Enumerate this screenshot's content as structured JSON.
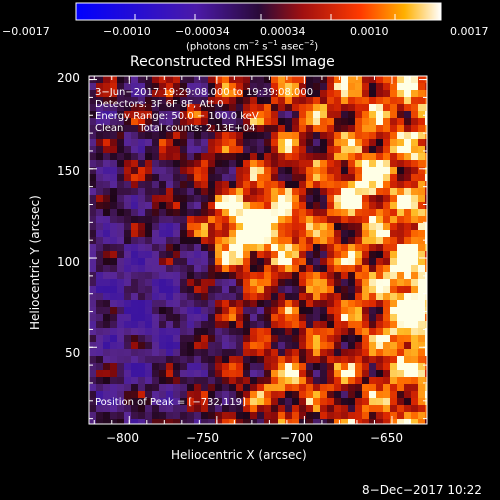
{
  "colorbar": {
    "ticks": [
      "−0.0017",
      "−0.0010",
      "−0.00034",
      "0.00034",
      "0.0010",
      "0.0017"
    ],
    "units_main": "(photons cm",
    "units_exp1": "−2",
    "units_mid": " s",
    "units_exp2": "−1",
    "units_mid2": " asec",
    "units_exp3": "−2",
    "units_end": ")"
  },
  "plot": {
    "title": "Reconstructed RHESSI Image",
    "xlabel": "Heliocentric X (arcsec)",
    "ylabel": "Heliocentric Y (arcsec)",
    "xticks": [
      "−800",
      "−750",
      "−700",
      "−650"
    ],
    "yticks": [
      "200",
      "150",
      "100",
      "50"
    ],
    "annotations": [
      "3−Jun−2017 19:29:08.000 to 19:39:08.000",
      "Detectors: 3F 6F 8F, Att 0",
      "Energy Range: 50.0 − 100.0 keV",
      "Clean     Total counts: 2.13E+04"
    ],
    "peak": "Position of Peak = [−732,119]"
  },
  "footer": {
    "timestamp": "8−Dec−2017 10:22"
  },
  "image_data": {
    "x_range": [
      -823,
      -630
    ],
    "y_range": [
      7,
      202
    ],
    "peak_xy": [
      -732,
      119
    ]
  }
}
